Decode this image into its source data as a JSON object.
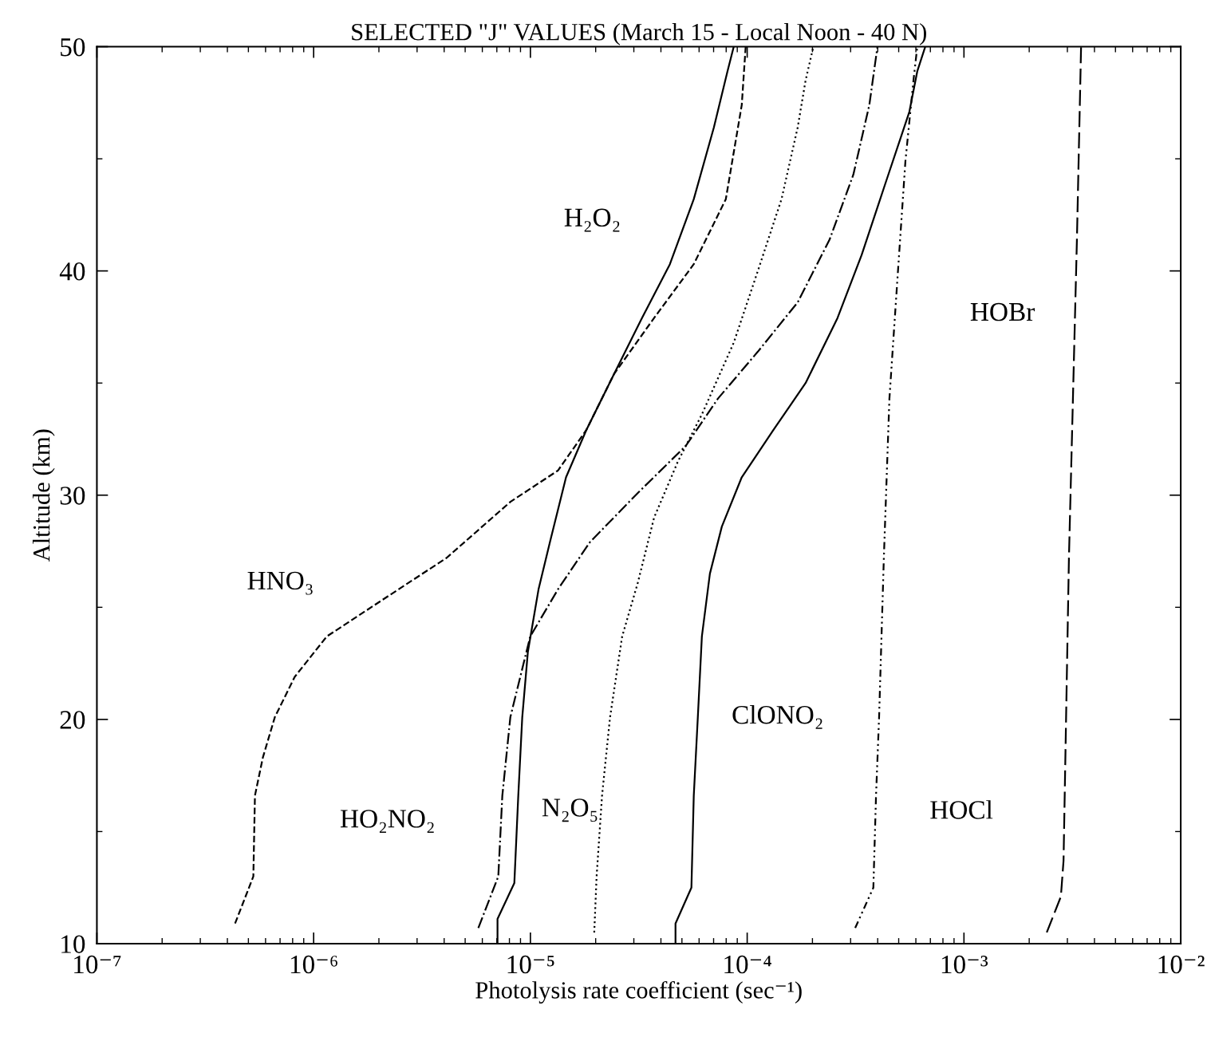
{
  "chart_data": {
    "type": "line",
    "title": "SELECTED \"J\" VALUES (March 15 - Local Noon - 40 N)",
    "xlabel": "Photolysis rate coefficient (sec⁻¹)",
    "ylabel": "Altitude (km)",
    "log": "x",
    "grid": false,
    "legend": false,
    "marker": "none",
    "xlim": [
      1e-07,
      0.01
    ],
    "xticks": [
      {
        "value": 1e-07,
        "label": "10⁻⁷"
      },
      {
        "value": 1e-06,
        "label": "10⁻⁶"
      },
      {
        "value": 1e-05,
        "label": "10⁻⁵"
      },
      {
        "value": 0.0001,
        "label": "10⁻⁴"
      },
      {
        "value": 0.001,
        "label": "10⁻³"
      },
      {
        "value": 0.01,
        "label": "10⁻²"
      }
    ],
    "ylim": [
      10,
      50
    ],
    "yticks": [
      10,
      20,
      30,
      40,
      50
    ],
    "series": [
      {
        "name": "H₂O₂",
        "color": "#000000",
        "line_style": "solid",
        "x": [
          7.05e-06,
          7.05e-06,
          8.43e-06,
          8.79e-06,
          9.17e-06,
          9.73e-06,
          1.09e-05,
          1.23e-05,
          1.46e-05,
          1.81e-05,
          2.43e-05,
          3.27e-05,
          4.4e-05,
          5.67e-05,
          7.02e-05,
          8.11e-05,
          8.67e-05
        ],
        "values": [
          10,
          11.1,
          12.7,
          16.6,
          20.1,
          23,
          25.8,
          27.9,
          30.8,
          32.9,
          35.4,
          37.9,
          40.3,
          43.2,
          46.4,
          48.9,
          50
        ]
      },
      {
        "name": "HNO₃",
        "color": "#000000",
        "line_style": "dashed",
        "x": [
          4.34e-07,
          5.27e-07,
          5.36e-07,
          5.83e-07,
          6.62e-07,
          8.18e-07,
          1.15e-06,
          1.91e-06,
          4.1e-06,
          8.08e-06,
          1.34e-05,
          1.81e-05,
          2.43e-05,
          3.72e-05,
          5.67e-05,
          7.97e-05,
          9.44e-05,
          9.84e-05
        ],
        "values": [
          10.9,
          13,
          16.6,
          18.3,
          20.1,
          21.9,
          23.7,
          25.1,
          27.2,
          29.7,
          31.1,
          32.9,
          35.4,
          37.9,
          40.3,
          43.2,
          47.4,
          50
        ]
      },
      {
        "name": "HO₂NO₂",
        "color": "#000000",
        "line_style": "dashdot",
        "x": [
          5.75e-06,
          7.11e-06,
          7.42e-06,
          8.08e-06,
          9.98e-06,
          1.34e-05,
          1.88e-05,
          3.13e-05,
          5.21e-05,
          7.32e-05,
          0.000112,
          0.000171,
          0.00024,
          0.000309,
          0.000366,
          0.000399
        ],
        "values": [
          10.7,
          13,
          16.6,
          20.1,
          23.7,
          25.8,
          27.9,
          30.1,
          32.2,
          34.3,
          36.4,
          38.6,
          41.4,
          44.3,
          47.4,
          50
        ]
      },
      {
        "name": "N₂O₅",
        "color": "#000000",
        "line_style": "dotted",
        "x": [
          1.97e-05,
          2.02e-05,
          2.14e-05,
          2.33e-05,
          2.65e-05,
          3.13e-05,
          3.72e-05,
          4.79e-05,
          6.18e-05,
          8.67e-05,
          0.000112,
          0.000144,
          0.000171,
          0.000186,
          0.000202
        ],
        "values": [
          10.5,
          13,
          16.6,
          20.1,
          23.7,
          26.1,
          29,
          31.5,
          33.6,
          36.8,
          40,
          43.2,
          46.4,
          48.5,
          50
        ]
      },
      {
        "name": "ClONO₂",
        "color": "#000000",
        "line_style": "solid",
        "x": [
          4.67e-05,
          4.67e-05,
          5.53e-05,
          5.67e-05,
          5.92e-05,
          6.18e-05,
          6.73e-05,
          7.64e-05,
          9.44e-05,
          0.000132,
          0.000186,
          0.000261,
          0.000337,
          0.000434,
          0.00056,
          0.000609,
          0.000663
        ],
        "values": [
          10,
          10.9,
          12.5,
          16.6,
          20.1,
          23.7,
          26.5,
          28.6,
          30.8,
          32.9,
          35,
          37.9,
          40.7,
          43.9,
          47.1,
          48.9,
          50
        ]
      },
      {
        "name": "HOCl",
        "color": "#000000",
        "line_style": "dashdotdot",
        "x": [
          0.000315,
          0.000382,
          0.000393,
          0.000406,
          0.000427,
          0.000453,
          0.000493,
          0.000537,
          0.000585,
          0.000609
        ],
        "values": [
          10.7,
          12.5,
          16.6,
          20.1,
          27.2,
          34.3,
          39.6,
          44.9,
          48.5,
          50
        ]
      },
      {
        "name": "HOBr",
        "color": "#000000",
        "line_style": "longdash",
        "x": [
          0.00241,
          0.0028,
          0.00288,
          0.00305,
          0.00332,
          0.00347
        ],
        "values": [
          10.5,
          12.1,
          13.7,
          27.2,
          41.4,
          50
        ]
      }
    ]
  }
}
